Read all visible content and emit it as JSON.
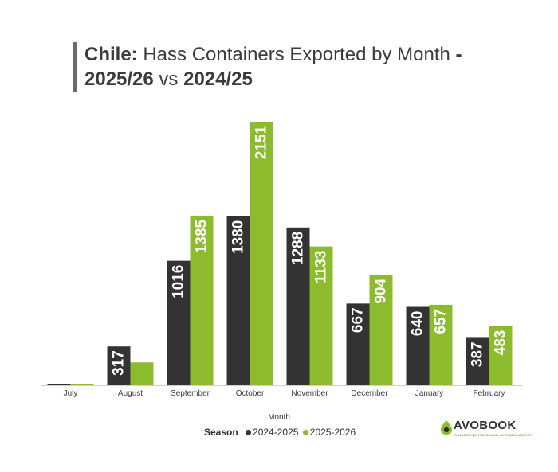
{
  "title": {
    "line1_bold": "Chile:",
    "line1_text": " Hass Containers Exported by Month ",
    "line1_dash": "-",
    "line2_season_a": "2025/26",
    "line2_vs": " vs ",
    "line2_season_b": "2024/25"
  },
  "legend": {
    "title": "Season",
    "series_a": "2024-2025",
    "series_b": "2025-2026"
  },
  "logo": {
    "name": "AVOBOOK",
    "tagline": "CONNECTING THE GLOBAL AVOCADO MARKET"
  },
  "colors": {
    "series_a": "#333333",
    "series_b": "#8cbb2d",
    "axis": "#cfcfcf"
  },
  "chart_data": {
    "type": "bar",
    "title": "Chile: Hass Containers Exported by Month - 2025/26 vs 2024/25",
    "xlabel": "Month",
    "ylabel": "",
    "categories": [
      "July",
      "August",
      "September",
      "October",
      "November",
      "December",
      "January",
      "February"
    ],
    "series": [
      {
        "name": "2024-2025",
        "values": [
          13,
          317,
          1016,
          1380,
          1288,
          667,
          640,
          387
        ],
        "labels": [
          "",
          "317",
          "1016",
          "1380",
          "1288",
          "667",
          "640",
          "387"
        ]
      },
      {
        "name": "2025-2026",
        "values": [
          8,
          187,
          1385,
          2151,
          1133,
          904,
          657,
          483
        ],
        "labels": [
          "",
          "",
          "1385",
          "2151",
          "1133",
          "904",
          "657",
          "483"
        ]
      }
    ],
    "ylim": [
      0,
      2151
    ],
    "grid": false,
    "legend_position": "bottom"
  }
}
